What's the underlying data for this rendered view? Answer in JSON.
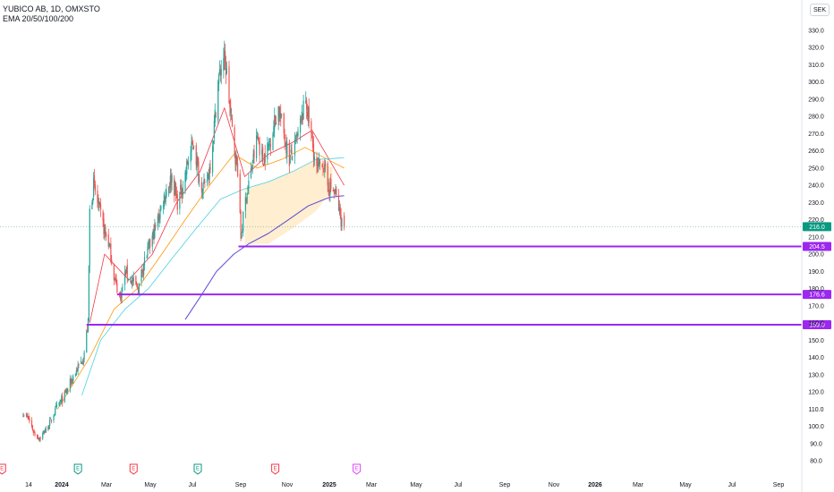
{
  "header": {
    "title": "YUBICO AB, 1D, OMXSTO",
    "indicator": "EMA 20/50/100/200"
  },
  "currency": "SEK",
  "colors": {
    "up": "#26a69a",
    "down": "#ef5350",
    "ema20": "#f23645",
    "ema50": "#ff9800",
    "ema100": "#4dd0e1",
    "ema200": "#5b4bdb",
    "level": "#9c27f0",
    "current": "#089981",
    "earnings_past": "#f23645",
    "earnings_past_alt": "#089981",
    "earnings_future": "#e040fb"
  },
  "chart_data": {
    "type": "candlestick",
    "y_axis": {
      "range": [
        75,
        335
      ],
      "ticks": [
        330.0,
        320.0,
        310.0,
        300.0,
        290.0,
        280.0,
        270.0,
        260.0,
        250.0,
        240.0,
        230.0,
        220.0,
        210.0,
        200.0,
        190.0,
        180.0,
        170.0,
        160.0,
        150.0,
        140.0,
        130.0,
        120.0,
        110.0,
        100.0,
        90.0,
        80.0
      ]
    },
    "x_axis": {
      "ticks": [
        "14",
        "2024",
        "Mar",
        "May",
        "Jul",
        "Sep",
        "Nov",
        "2025",
        "Mar",
        "May",
        "Jul",
        "Sep",
        "Nov",
        "2026",
        "Mar",
        "May",
        "Jul",
        "Sep"
      ],
      "bold_ticks": [
        "2024",
        "2025",
        "2026"
      ]
    },
    "price_path": [
      [
        "2023-12-07",
        108
      ],
      [
        "2023-12-14",
        104
      ],
      [
        "2023-12-21",
        96
      ],
      [
        "2023-12-28",
        93
      ],
      [
        "2024-01-08",
        100
      ],
      [
        "2024-01-18",
        110
      ],
      [
        "2024-01-29",
        118
      ],
      [
        "2024-02-08",
        128
      ],
      [
        "2024-02-22",
        140
      ],
      [
        "2024-02-28",
        160
      ],
      [
        "2024-03-01",
        225
      ],
      [
        "2024-03-06",
        240
      ],
      [
        "2024-03-12",
        228
      ],
      [
        "2024-03-19",
        215
      ],
      [
        "2024-03-26",
        205
      ],
      [
        "2024-04-02",
        185
      ],
      [
        "2024-04-09",
        175
      ],
      [
        "2024-04-16",
        190
      ],
      [
        "2024-04-24",
        184
      ],
      [
        "2024-05-02",
        180
      ],
      [
        "2024-05-09",
        195
      ],
      [
        "2024-05-17",
        205
      ],
      [
        "2024-05-27",
        220
      ],
      [
        "2024-06-05",
        235
      ],
      [
        "2024-06-14",
        245
      ],
      [
        "2024-06-21",
        230
      ],
      [
        "2024-06-28",
        240
      ],
      [
        "2024-07-05",
        255
      ],
      [
        "2024-07-12",
        265
      ],
      [
        "2024-07-19",
        243
      ],
      [
        "2024-07-26",
        238
      ],
      [
        "2024-08-01",
        250
      ],
      [
        "2024-08-06",
        270
      ],
      [
        "2024-08-12",
        300
      ],
      [
        "2024-08-19",
        315
      ],
      [
        "2024-08-23",
        305
      ],
      [
        "2024-08-28",
        280
      ],
      [
        "2024-09-02",
        260
      ],
      [
        "2024-09-06",
        250
      ],
      [
        "2024-09-10",
        210
      ],
      [
        "2024-09-17",
        235
      ],
      [
        "2024-09-24",
        250
      ],
      [
        "2024-10-01",
        268
      ],
      [
        "2024-10-08",
        255
      ],
      [
        "2024-10-15",
        262
      ],
      [
        "2024-10-22",
        275
      ],
      [
        "2024-10-28",
        285
      ],
      [
        "2024-11-04",
        270
      ],
      [
        "2024-11-11",
        255
      ],
      [
        "2024-11-18",
        262
      ],
      [
        "2024-11-25",
        275
      ],
      [
        "2024-12-02",
        290
      ],
      [
        "2024-12-09",
        268
      ],
      [
        "2024-12-16",
        248
      ],
      [
        "2024-12-23",
        255
      ],
      [
        "2024-12-30",
        240
      ],
      [
        "2025-01-09",
        235
      ],
      [
        "2025-01-16",
        220
      ],
      [
        "2025-01-20",
        216
      ]
    ],
    "ema": [
      {
        "name": "EMA 20",
        "points": [
          [
            "2024-03-01",
            160
          ],
          [
            "2024-03-20",
            200
          ],
          [
            "2024-04-20",
            185
          ],
          [
            "2024-05-20",
            200
          ],
          [
            "2024-06-20",
            230
          ],
          [
            "2024-07-20",
            248
          ],
          [
            "2024-08-20",
            285
          ],
          [
            "2024-09-15",
            245
          ],
          [
            "2024-10-15",
            258
          ],
          [
            "2024-11-15",
            265
          ],
          [
            "2024-12-10",
            272
          ],
          [
            "2025-01-20",
            240
          ]
        ]
      },
      {
        "name": "EMA 50",
        "points": [
          [
            "2024-01-20",
            110
          ],
          [
            "2024-03-01",
            140
          ],
          [
            "2024-04-01",
            168
          ],
          [
            "2024-05-01",
            180
          ],
          [
            "2024-06-01",
            200
          ],
          [
            "2024-07-01",
            220
          ],
          [
            "2024-08-01",
            240
          ],
          [
            "2024-09-01",
            258
          ],
          [
            "2024-10-01",
            250
          ],
          [
            "2024-11-01",
            255
          ],
          [
            "2024-12-01",
            262
          ],
          [
            "2025-01-20",
            250
          ]
        ]
      },
      {
        "name": "EMA 100",
        "points": [
          [
            "2024-02-20",
            118
          ],
          [
            "2024-03-15",
            150
          ],
          [
            "2024-04-15",
            168
          ],
          [
            "2024-05-15",
            180
          ],
          [
            "2024-06-15",
            198
          ],
          [
            "2024-07-15",
            215
          ],
          [
            "2024-08-15",
            232
          ],
          [
            "2024-09-15",
            238
          ],
          [
            "2024-10-15",
            242
          ],
          [
            "2024-11-15",
            248
          ],
          [
            "2024-12-15",
            255
          ],
          [
            "2025-01-20",
            256
          ]
        ]
      },
      {
        "name": "EMA 200",
        "points": [
          [
            "2024-07-01",
            162
          ],
          [
            "2024-07-20",
            175
          ],
          [
            "2024-08-10",
            190
          ],
          [
            "2024-09-01",
            200
          ],
          [
            "2024-09-20",
            206
          ],
          [
            "2024-10-15",
            212
          ],
          [
            "2024-11-10",
            220
          ],
          [
            "2024-12-05",
            228
          ],
          [
            "2025-01-01",
            233
          ],
          [
            "2025-01-20",
            234
          ]
        ]
      }
    ],
    "horizontal_levels": [
      {
        "value": 204.5,
        "label": "204.5",
        "from": "2024-09-07"
      },
      {
        "value": 176.6,
        "label": "176.6",
        "from": "2024-04-05"
      },
      {
        "value": 159.0,
        "label": "159.0",
        "from": "2024-02-26"
      }
    ],
    "current_price": {
      "value": 216.0,
      "label": "216.0"
    },
    "earnings_markers": [
      {
        "date": "2023-11-10",
        "label": "E",
        "kind": "past"
      },
      {
        "date": "2024-02-15",
        "label": "E",
        "kind": "past_alt"
      },
      {
        "date": "2024-04-26",
        "label": "E",
        "kind": "past"
      },
      {
        "date": "2024-07-17",
        "label": "E",
        "kind": "past_alt"
      },
      {
        "date": "2024-10-24",
        "label": "E",
        "kind": "past"
      },
      {
        "date": "2025-02-05",
        "label": "E",
        "kind": "future"
      }
    ]
  }
}
